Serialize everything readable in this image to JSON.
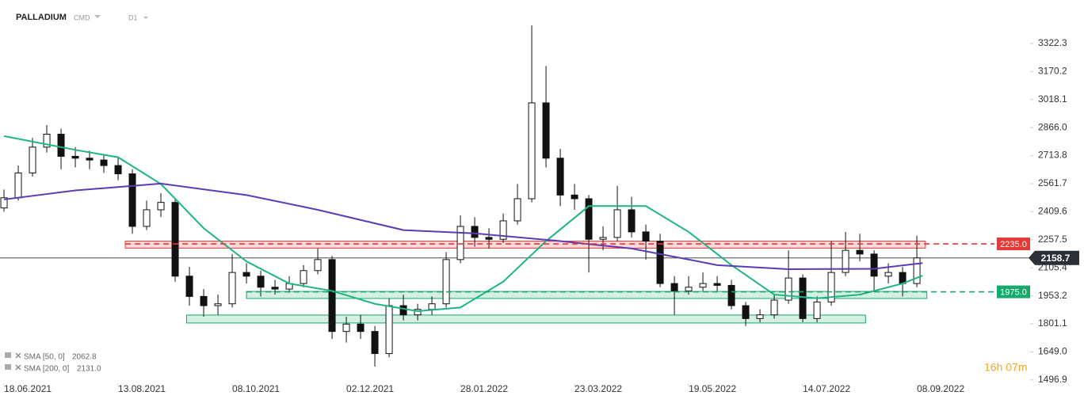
{
  "header": {
    "symbol": "PALLADIUM",
    "group": "CMD",
    "interval": "D1"
  },
  "countdown": "16h 07m",
  "chart_data": {
    "type": "candlestick",
    "candles": {
      "x": [
        0,
        5,
        10,
        15,
        20,
        25,
        30,
        35,
        40,
        45,
        50,
        55,
        60,
        65,
        70,
        75,
        80,
        85,
        90,
        95,
        100,
        105,
        110,
        115,
        120,
        125,
        130,
        135,
        140,
        145,
        150,
        155,
        160,
        165,
        170,
        175,
        180,
        185,
        190,
        195,
        200,
        205,
        210,
        215,
        220,
        225,
        230,
        235,
        240,
        245,
        250,
        255,
        260,
        265,
        270,
        275,
        280,
        285,
        290,
        295,
        300,
        305,
        310,
        315,
        320
      ],
      "open": [
        2430,
        2485,
        2620,
        2760,
        2830,
        2710,
        2700,
        2690,
        2660,
        2615,
        2330,
        2420,
        2460,
        2060,
        1950,
        1900,
        1910,
        2080,
        2060,
        2000,
        1990,
        2020,
        2090,
        2150,
        1760,
        1800,
        1760,
        1640,
        1900,
        1850,
        1880,
        1910,
        2150,
        2330,
        2270,
        2260,
        2360,
        2480,
        3000,
        2700,
        2500,
        2480,
        2260,
        2270,
        2420,
        2300,
        2250,
        2020,
        1980,
        2000,
        2020,
        2010,
        1900,
        1830,
        1850,
        1930,
        2050,
        1830,
        1920,
        2080,
        2200,
        2180,
        2060,
        2080,
        2020
      ],
      "high": [
        2530,
        2660,
        2810,
        2880,
        2860,
        2760,
        2740,
        2720,
        2700,
        2640,
        2470,
        2510,
        2480,
        2110,
        1990,
        1960,
        2180,
        2130,
        2090,
        2040,
        2060,
        2120,
        2210,
        2170,
        1840,
        1850,
        1790,
        1940,
        1960,
        1910,
        1950,
        2190,
        2390,
        2380,
        2320,
        2400,
        2560,
        3420,
        3200,
        2750,
        2560,
        2500,
        2330,
        2550,
        2490,
        2340,
        2290,
        2060,
        2060,
        2080,
        2060,
        2040,
        1920,
        1880,
        1960,
        2200,
        2070,
        1950,
        2250,
        2300,
        2290,
        2200,
        2130,
        2110,
        2280
      ],
      "low": [
        2410,
        2470,
        2600,
        2730,
        2640,
        2650,
        2640,
        2620,
        2580,
        2290,
        2310,
        2380,
        2030,
        1900,
        1840,
        1850,
        1890,
        2020,
        1950,
        1960,
        1970,
        2000,
        2070,
        1720,
        1700,
        1720,
        1570,
        1620,
        1820,
        1820,
        1850,
        1890,
        2130,
        2220,
        2210,
        2240,
        2340,
        2460,
        2650,
        2440,
        2420,
        2080,
        2200,
        2250,
        2270,
        2150,
        2000,
        1850,
        1960,
        1980,
        1980,
        1880,
        1790,
        1810,
        1830,
        1910,
        1810,
        1810,
        1900,
        2060,
        2140,
        1980,
        2020,
        1950,
        2000
      ],
      "close": [
        2485,
        2620,
        2760,
        2830,
        2710,
        2700,
        2690,
        2660,
        2615,
        2330,
        2420,
        2460,
        2060,
        1950,
        1900,
        1910,
        2080,
        2060,
        2000,
        1990,
        2020,
        2090,
        2150,
        1760,
        1800,
        1760,
        1640,
        1900,
        1850,
        1880,
        1910,
        2150,
        2330,
        2270,
        2260,
        2360,
        2480,
        3000,
        2700,
        2500,
        2480,
        2260,
        2270,
        2420,
        2300,
        2250,
        2020,
        1980,
        2000,
        2020,
        2010,
        1900,
        1830,
        1850,
        1930,
        2050,
        1830,
        1920,
        2080,
        2200,
        2180,
        2060,
        2080,
        2020,
        2159
      ]
    },
    "series": [
      {
        "name": "SMA [50, 0]",
        "value_label": "2062.8",
        "color": "#1db584",
        "x": [
          0,
          25,
          40,
          55,
          70,
          85,
          100,
          115,
          130,
          145,
          160,
          175,
          190,
          205,
          225,
          240,
          255,
          270,
          285,
          300,
          315,
          322
        ],
        "values": [
          2820,
          2745,
          2705,
          2560,
          2320,
          2140,
          2020,
          1980,
          1910,
          1870,
          1890,
          2030,
          2250,
          2440,
          2440,
          2300,
          2120,
          1960,
          1940,
          1960,
          2020,
          2063
        ]
      },
      {
        "name": "SMA [200, 0]",
        "value_label": "2131.0",
        "color": "#5b3bb5",
        "x": [
          0,
          25,
          55,
          85,
          110,
          140,
          165,
          195,
          220,
          250,
          275,
          305,
          322
        ],
        "values": [
          2476,
          2525,
          2562,
          2500,
          2420,
          2310,
          2292,
          2250,
          2210,
          2120,
          2098,
          2100,
          2131
        ]
      }
    ],
    "zones": [
      {
        "x": [
          42.5,
          323
        ],
        "range": [
          2212,
          2250
        ],
        "color": "#e53935"
      },
      {
        "x": [
          85,
          323.5
        ],
        "range": [
          1939,
          1977
        ],
        "color": "#16a96b"
      },
      {
        "x": [
          64,
          302
        ],
        "range": [
          1806,
          1849
        ],
        "color": "#16a96b"
      }
    ],
    "levels": [
      {
        "value": 2235,
        "label": "2235.0",
        "color": "#e53935"
      },
      {
        "value": 1975,
        "label": "1975.0",
        "color": "#16a96b"
      }
    ],
    "last_price": 2158.7,
    "xlim": [
      -1.4,
      359.7
    ],
    "ylim": [
      1475,
      3558
    ],
    "xticks": [
      {
        "value": 0,
        "label": "18.06.2021"
      },
      {
        "value": 40,
        "label": "13.08.2021"
      },
      {
        "value": 80,
        "label": "08.10.2021"
      },
      {
        "value": 120,
        "label": "02.12.2021"
      },
      {
        "value": 160,
        "label": "28.01.2022"
      },
      {
        "value": 200,
        "label": "23.03.2022"
      },
      {
        "value": 240,
        "label": "19.05.2022"
      },
      {
        "value": 280,
        "label": "14.07.2022"
      },
      {
        "value": 320,
        "label": "08.09.2022"
      }
    ],
    "yticks": [
      1496.9,
      {
        "value": 1649,
        "label": "1649.0"
      },
      1801.1,
      1953.2,
      2105.4,
      2257.5,
      2409.6,
      2561.7,
      2713.8,
      {
        "value": 2866,
        "label": "2866.0"
      },
      3018.1,
      3170.2,
      3322.3
    ]
  }
}
